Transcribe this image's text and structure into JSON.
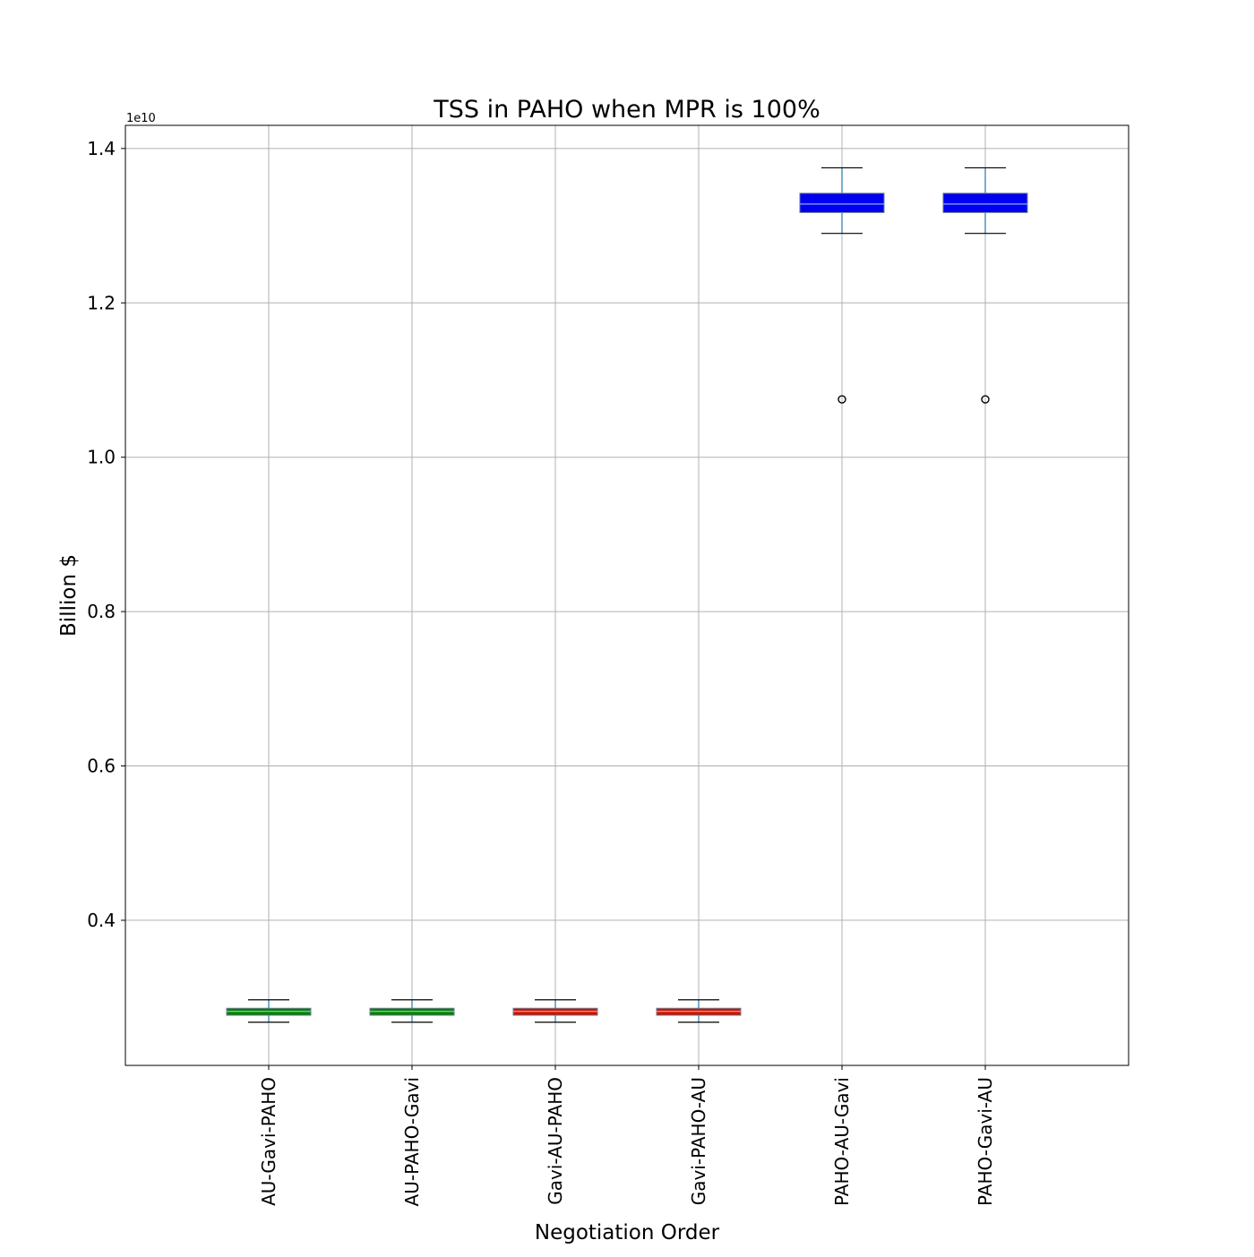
{
  "chart_data": {
    "type": "box",
    "title": "TSS in PAHO when MPR is 100%",
    "xlabel": "Negotiation Order",
    "ylabel": "Billion $",
    "y_offset_label": "1e10",
    "y_multiplier": 10000000000,
    "ylim": [
      0.212,
      1.43
    ],
    "y_ticks": [
      0.4,
      0.6,
      0.8,
      1.0,
      1.2,
      1.4
    ],
    "y_tick_labels": [
      "0.4",
      "0.6",
      "0.8",
      "1.0",
      "1.2",
      "1.4"
    ],
    "grid": true,
    "categories": [
      "AU-Gavi-PAHO",
      "AU-PAHO-Gavi",
      "Gavi-AU-PAHO",
      "Gavi-PAHO-AU",
      "PAHO-AU-Gavi",
      "PAHO-Gavi-AU"
    ],
    "boxes": [
      {
        "category": "AU-Gavi-PAHO",
        "whisker_low": 0.268,
        "q1": 0.277,
        "median": 0.282,
        "q3": 0.286,
        "whisker_high": 0.297,
        "outliers": [],
        "fill": "#008000",
        "median_color": "#7fbf7f"
      },
      {
        "category": "AU-PAHO-Gavi",
        "whisker_low": 0.268,
        "q1": 0.277,
        "median": 0.282,
        "q3": 0.286,
        "whisker_high": 0.297,
        "outliers": [],
        "fill": "#008000",
        "median_color": "#7fbf7f"
      },
      {
        "category": "Gavi-AU-PAHO",
        "whisker_low": 0.268,
        "q1": 0.277,
        "median": 0.282,
        "q3": 0.286,
        "whisker_high": 0.297,
        "outliers": [],
        "fill": "#cc1100",
        "median_color": "#ee8866"
      },
      {
        "category": "Gavi-PAHO-AU",
        "whisker_low": 0.268,
        "q1": 0.277,
        "median": 0.282,
        "q3": 0.286,
        "whisker_high": 0.297,
        "outliers": [],
        "fill": "#cc1100",
        "median_color": "#ee8866"
      },
      {
        "category": "PAHO-AU-Gavi",
        "whisker_low": 1.29,
        "q1": 1.317,
        "median": 1.328,
        "q3": 1.342,
        "whisker_high": 1.375,
        "outliers": [
          1.075
        ],
        "fill": "#0000ee",
        "median_color": "#6f8fff"
      },
      {
        "category": "PAHO-Gavi-AU",
        "whisker_low": 1.29,
        "q1": 1.317,
        "median": 1.328,
        "q3": 1.342,
        "whisker_high": 1.375,
        "outliers": [
          1.075
        ],
        "fill": "#0000ee",
        "median_color": "#6f8fff"
      }
    ]
  }
}
